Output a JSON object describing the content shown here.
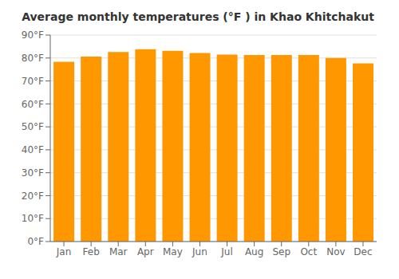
{
  "chart_data": {
    "type": "bar",
    "title": "Average monthly temperatures (°F ) in Khao Khitchakut",
    "categories": [
      "Jan",
      "Feb",
      "Mar",
      "Apr",
      "May",
      "Jun",
      "Jul",
      "Aug",
      "Sep",
      "Oct",
      "Nov",
      "Dec"
    ],
    "values": [
      78.4,
      80.6,
      82.6,
      83.8,
      83.1,
      82.2,
      81.5,
      81.3,
      81.3,
      81.3,
      80.0,
      77.7
    ],
    "color": "#FF9800",
    "ylim": [
      0,
      90
    ],
    "yticks": [
      {
        "value": 0,
        "label": "0°F"
      },
      {
        "value": 10,
        "label": "10°F"
      },
      {
        "value": 20,
        "label": "20°F"
      },
      {
        "value": 30,
        "label": "30°F"
      },
      {
        "value": 40,
        "label": "40°F"
      },
      {
        "value": 50,
        "label": "50°F"
      },
      {
        "value": 60,
        "label": "60°F"
      },
      {
        "value": 70,
        "label": "70°F"
      },
      {
        "value": 80,
        "label": "80°F"
      },
      {
        "value": 90,
        "label": "90°F"
      }
    ],
    "grid": true
  }
}
